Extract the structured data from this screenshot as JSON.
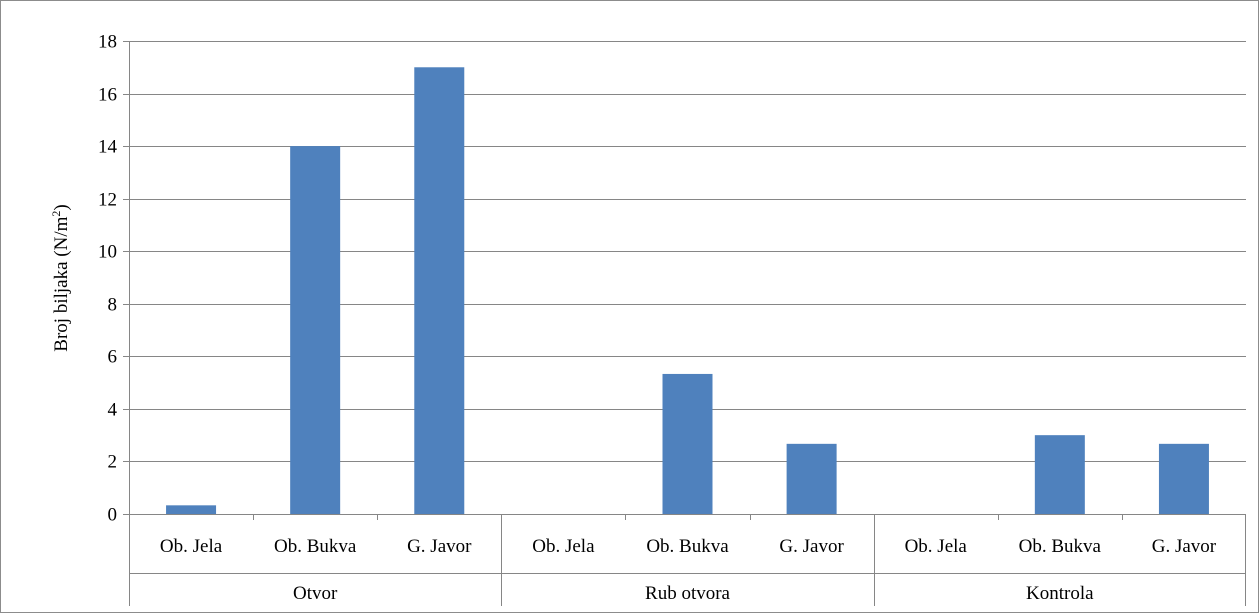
{
  "chart_data": {
    "type": "bar",
    "title": "",
    "xlabel": "",
    "ylabel": "Broj biljaka (N/m",
    "ylabel_sup": "2",
    "ylabel_tail": ")",
    "ylim": [
      0,
      18
    ],
    "yticks": [
      0,
      2,
      4,
      6,
      8,
      10,
      12,
      14,
      16,
      18
    ],
    "grid": true,
    "legend": "none",
    "bar_color": "#4f81bd",
    "gridline_color": "#868686",
    "groups": [
      {
        "label": "Otvor",
        "categories": [
          "Ob. Jela",
          "Ob. Bukva",
          "G. Javor"
        ],
        "values": [
          0.33,
          14,
          17
        ]
      },
      {
        "label": "Rub otvora",
        "categories": [
          "Ob. Jela",
          "Ob. Bukva",
          "G. Javor"
        ],
        "values": [
          0,
          5.33,
          2.67
        ]
      },
      {
        "label": "Kontrola",
        "categories": [
          "Ob. Jela",
          "Ob. Bukva",
          "G. Javor"
        ],
        "values": [
          0,
          3,
          2.67
        ]
      }
    ]
  }
}
